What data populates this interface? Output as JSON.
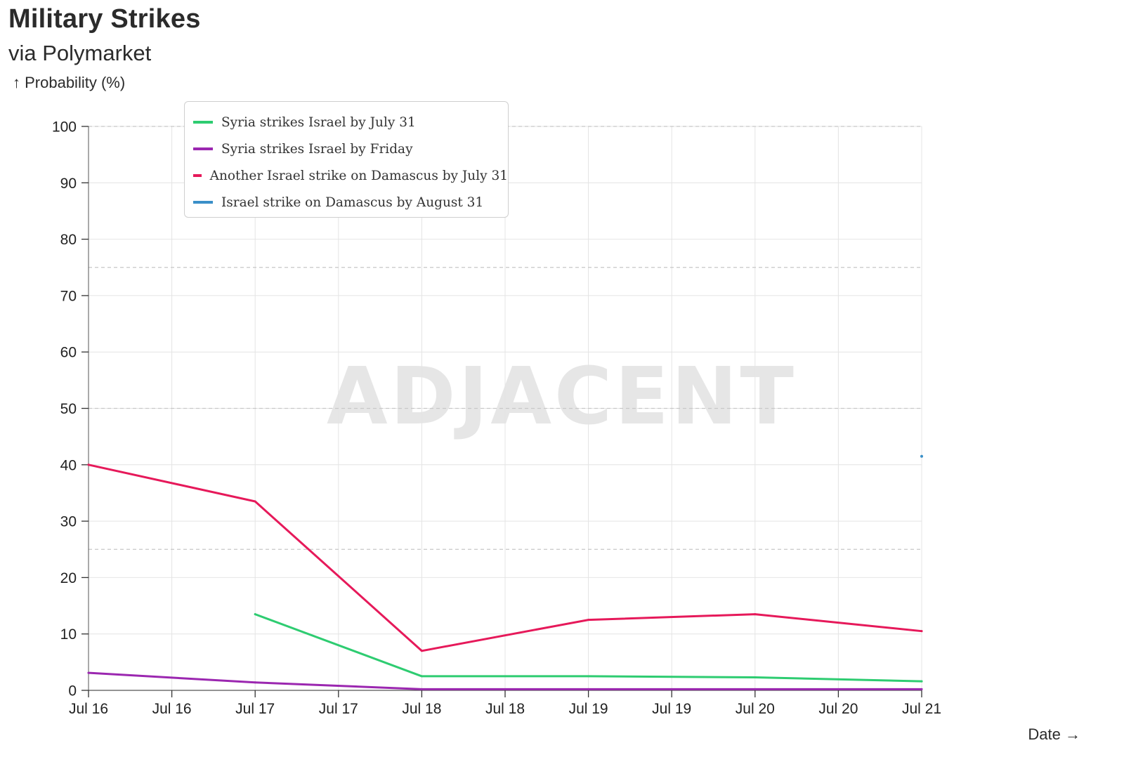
{
  "header": {
    "title": "Military Strikes",
    "subtitle": "via Polymarket",
    "y_axis_caption": "↑ Probability (%)",
    "x_axis_caption": "Date →"
  },
  "watermark": "ADJACENT",
  "chart_data": {
    "type": "line",
    "title": "Military Strikes",
    "subtitle": "via Polymarket",
    "ylabel": "↑ Probability (%)",
    "xlabel": "Date →",
    "ylim": [
      0,
      100
    ],
    "yticks": [
      0,
      10,
      20,
      30,
      40,
      50,
      60,
      70,
      80,
      90,
      100
    ],
    "xlim": [
      0,
      5
    ],
    "xticks": [
      0,
      0.5,
      1,
      1.5,
      2,
      2.5,
      3,
      3.5,
      4,
      4.5,
      5
    ],
    "xtick_labels": [
      "Jul 16",
      "Jul 16",
      "Jul 17",
      "Jul 17",
      "Jul 18",
      "Jul 18",
      "Jul 19",
      "Jul 19",
      "Jul 20",
      "Jul 20",
      "Jul 21"
    ],
    "reference_lines_y": [
      25,
      50,
      75,
      100
    ],
    "grid": true,
    "legend_position": "top-left",
    "series": [
      {
        "name": "Syria strikes Israel by July 31",
        "color": "#2ecc71",
        "x": [
          1,
          2,
          3,
          4,
          5
        ],
        "y": [
          13.5,
          2.5,
          2.5,
          2.3,
          1.6
        ]
      },
      {
        "name": "Syria strikes Israel by Friday",
        "color": "#9b27b0",
        "x": [
          0,
          1,
          2,
          3,
          4,
          5
        ],
        "y": [
          3.1,
          1.4,
          0.2,
          0.2,
          0.2,
          0.2
        ]
      },
      {
        "name": "Another Israel strike on Damascus by July 31",
        "color": "#e6195a",
        "x": [
          0,
          1,
          2,
          3,
          4,
          5
        ],
        "y": [
          40,
          33.5,
          7,
          12.5,
          13.5,
          10.5
        ]
      },
      {
        "name": "Israel strike on Damascus by August 31",
        "color": "#3a8fc8",
        "x": [
          5
        ],
        "y": [
          41.5
        ]
      }
    ]
  }
}
